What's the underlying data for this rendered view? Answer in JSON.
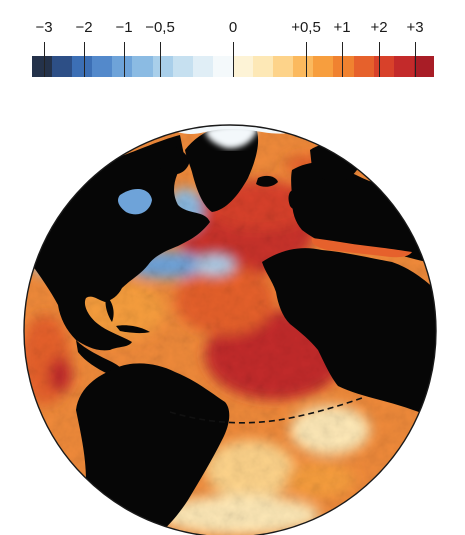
{
  "legend": {
    "ticks": [
      {
        "label": "−3",
        "value": -3
      },
      {
        "label": "−2",
        "value": -2
      },
      {
        "label": "−1",
        "value": -1
      },
      {
        "label": "−0,5",
        "value": -0.5
      },
      {
        "label": "0",
        "value": 0
      },
      {
        "label": "+0,5",
        "value": 0.5
      },
      {
        "label": "+1",
        "value": 1
      },
      {
        "label": "+2",
        "value": 2
      },
      {
        "label": "+3",
        "value": 3
      }
    ],
    "colors": [
      "#24324a",
      "#2d4f86",
      "#3c6fb5",
      "#5389cb",
      "#6ea3d9",
      "#8bbbe3",
      "#a9cfea",
      "#c6e0f0",
      "#e0eef6",
      "#f4f9fb",
      "#fdf3d6",
      "#fde8b6",
      "#fdd38a",
      "#fbb95e",
      "#f79e3e",
      "#f08230",
      "#e6612c",
      "#d8412a",
      "#c32a2a",
      "#a81d26"
    ]
  },
  "map": {
    "colors": {
      "land": "#060606",
      "sea_ice": "#f3f8fb",
      "outline": "#1a1a1a",
      "boundary_line": "#111111"
    }
  }
}
